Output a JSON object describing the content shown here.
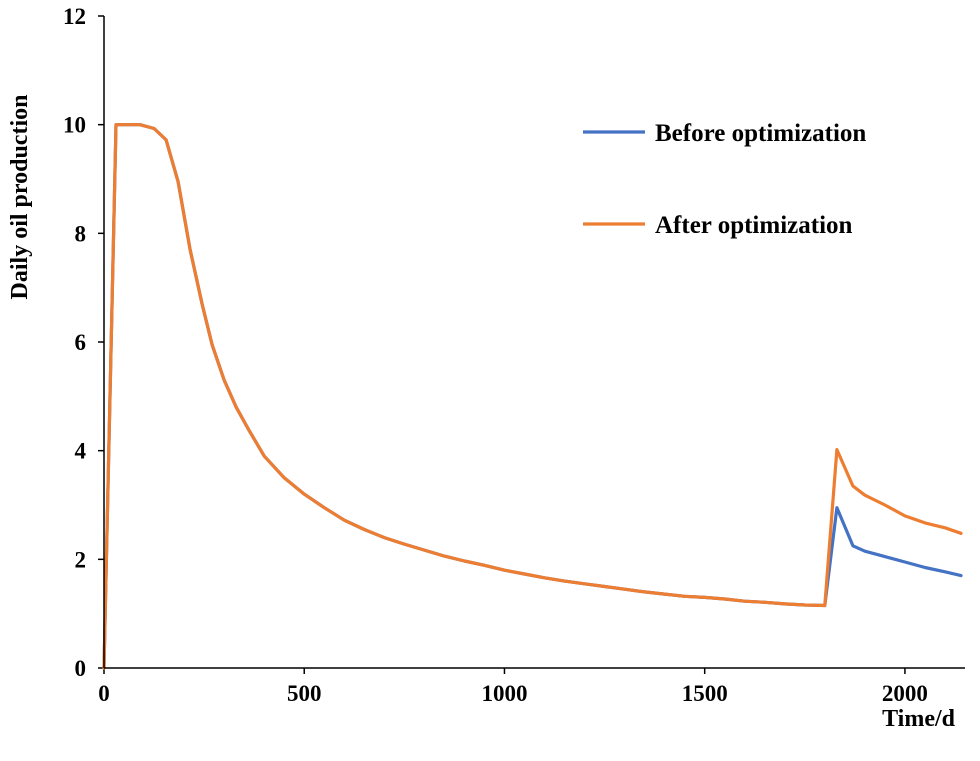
{
  "chart_data": {
    "type": "line",
    "title": "",
    "xlabel": "Time/d",
    "ylabel": "Daily oil production",
    "xlim": [
      0,
      2150
    ],
    "ylim": [
      0,
      12
    ],
    "xticks": [
      0,
      500,
      1000,
      1500,
      2000
    ],
    "yticks": [
      0,
      2,
      4,
      6,
      8,
      10,
      12
    ],
    "xtick_labels": [
      "0",
      "500",
      "1000",
      "1500",
      "2000"
    ],
    "ytick_labels": [
      "0",
      "2",
      "4",
      "6",
      "8",
      "10",
      "12"
    ],
    "grid": false,
    "legend_position": "top-right",
    "series": [
      {
        "name": "Before optimization",
        "color": "#4472C4",
        "x": [
          0,
          30,
          90,
          125,
          155,
          185,
          215,
          245,
          270,
          300,
          330,
          360,
          400,
          450,
          500,
          550,
          600,
          650,
          700,
          750,
          800,
          850,
          900,
          950,
          1000,
          1050,
          1100,
          1150,
          1200,
          1250,
          1300,
          1350,
          1400,
          1450,
          1500,
          1550,
          1600,
          1650,
          1700,
          1750,
          1800,
          1830,
          1870,
          1900,
          1950,
          2000,
          2050,
          2100,
          2140
        ],
        "y": [
          0,
          10.0,
          10.0,
          9.93,
          9.72,
          8.95,
          7.7,
          6.7,
          5.95,
          5.3,
          4.8,
          4.4,
          3.9,
          3.5,
          3.2,
          2.95,
          2.72,
          2.55,
          2.4,
          2.28,
          2.17,
          2.06,
          1.97,
          1.89,
          1.8,
          1.73,
          1.66,
          1.6,
          1.55,
          1.5,
          1.45,
          1.4,
          1.36,
          1.32,
          1.3,
          1.27,
          1.23,
          1.21,
          1.18,
          1.16,
          1.15,
          2.95,
          2.25,
          2.15,
          2.05,
          1.95,
          1.85,
          1.77,
          1.7
        ]
      },
      {
        "name": "After optimization",
        "color": "#ED7D31",
        "x": [
          0,
          30,
          90,
          125,
          155,
          185,
          215,
          245,
          270,
          300,
          330,
          360,
          400,
          450,
          500,
          550,
          600,
          650,
          700,
          750,
          800,
          850,
          900,
          950,
          1000,
          1050,
          1100,
          1150,
          1200,
          1250,
          1300,
          1350,
          1400,
          1450,
          1500,
          1550,
          1600,
          1650,
          1700,
          1750,
          1800,
          1830,
          1870,
          1900,
          1950,
          2000,
          2050,
          2100,
          2140
        ],
        "y": [
          0,
          10.0,
          10.0,
          9.93,
          9.72,
          8.95,
          7.7,
          6.7,
          5.95,
          5.3,
          4.8,
          4.4,
          3.9,
          3.5,
          3.2,
          2.95,
          2.72,
          2.55,
          2.4,
          2.28,
          2.17,
          2.06,
          1.97,
          1.89,
          1.8,
          1.73,
          1.66,
          1.6,
          1.55,
          1.5,
          1.45,
          1.4,
          1.36,
          1.32,
          1.3,
          1.27,
          1.23,
          1.21,
          1.18,
          1.16,
          1.15,
          4.02,
          3.35,
          3.18,
          3.0,
          2.8,
          2.67,
          2.58,
          2.48
        ]
      }
    ]
  }
}
